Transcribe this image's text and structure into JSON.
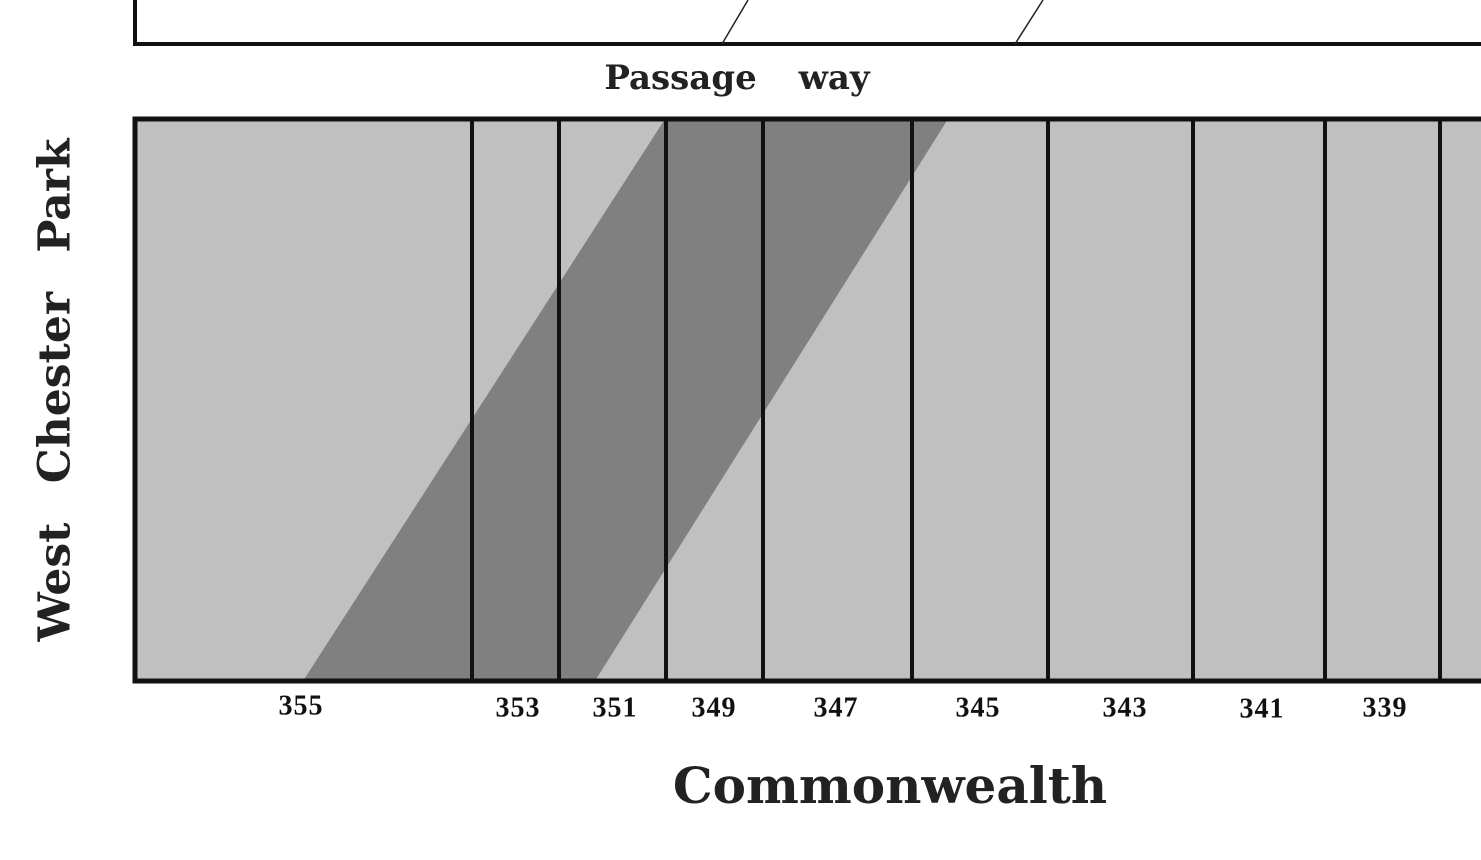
{
  "streets": {
    "north": "Passage way",
    "west": "West Chester Park",
    "south": "Commonwealth"
  },
  "lots": [
    "355",
    "353",
    "351",
    "349",
    "347",
    "345",
    "343",
    "341",
    "339"
  ]
}
